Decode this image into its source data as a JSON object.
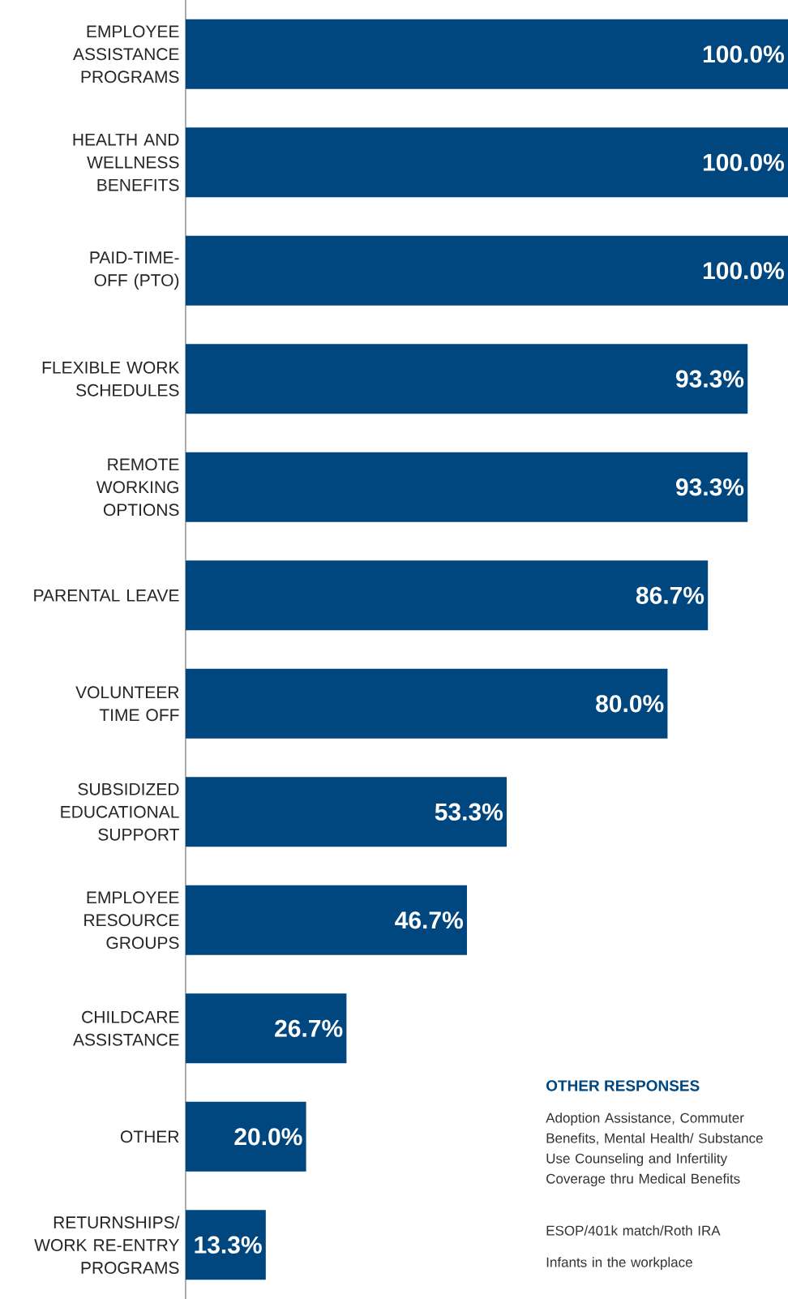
{
  "chart_data": {
    "type": "bar",
    "orientation": "horizontal",
    "categories": [
      "EMPLOYEE ASSISTANCE PROGRAMS",
      "HEALTH AND WELLNESS BENEFITS",
      "PAID-TIME-OFF (PTO)",
      "FLEXIBLE WORK SCHEDULES",
      "REMOTE WORKING OPTIONS",
      "PARENTAL LEAVE",
      "VOLUNTEER TIME OFF",
      "SUBSIDIZED EDUCATIONAL SUPPORT",
      "EMPLOYEE RESOURCE GROUPS",
      "CHILDCARE ASSISTANCE",
      "OTHER",
      "RETURNSHIPS/ WORK RE-ENTRY PROGRAMS"
    ],
    "values": [
      100.0,
      100.0,
      100.0,
      93.3,
      93.3,
      86.7,
      80.0,
      53.3,
      46.7,
      26.7,
      20.0,
      13.3
    ],
    "value_labels": [
      "100.0%",
      "100.0%",
      "100.0%",
      "93.3%",
      "93.3%",
      "86.7%",
      "80.0%",
      "53.3%",
      "46.7%",
      "26.7%",
      "20.0%",
      "13.3%"
    ],
    "color": "#00467f",
    "annotations": [
      "OTHER RESPONSES",
      "Adoption Assistance, Commuter Benefits, Mental Health/ Substance Use Counseling and Infertility Coverage thru Medical Benefits",
      "ESOP/401k match/Roth IRA",
      "Infants in the workplace"
    ]
  }
}
